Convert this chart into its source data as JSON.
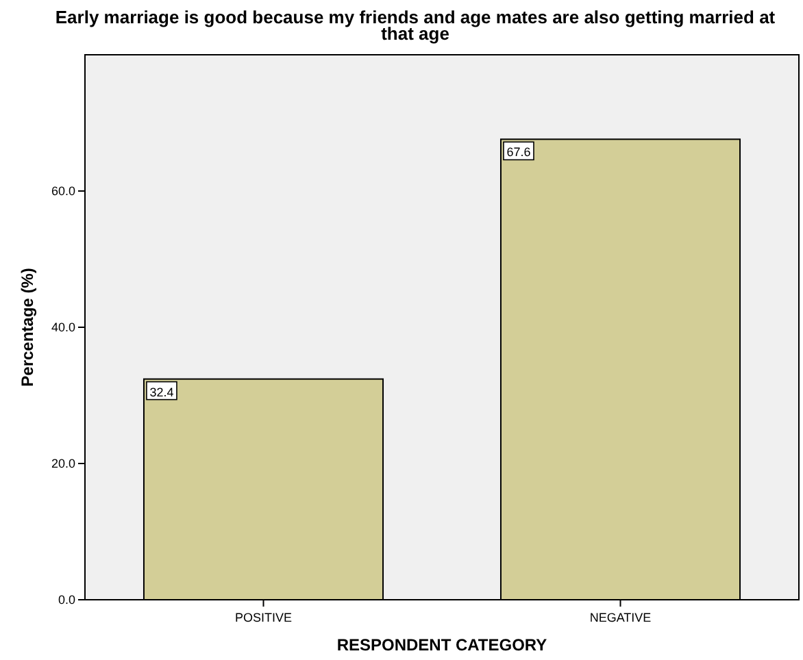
{
  "chart_data": {
    "type": "bar",
    "title": "Early marriage is good because my friends and age mates are also getting married at that age",
    "xlabel": "RESPONDENT CATEGORY",
    "ylabel": "Percentage (%)",
    "categories": [
      "POSITIVE",
      "NEGATIVE"
    ],
    "values": [
      32.4,
      67.6
    ],
    "color": "#d3ce97",
    "ylim": [
      0,
      80
    ],
    "yticks": [
      {
        "value": 0,
        "label": "0.0"
      },
      {
        "value": 20,
        "label": "20.0"
      },
      {
        "value": 40,
        "label": "40.0"
      },
      {
        "value": 60,
        "label": "60.0"
      }
    ],
    "data_labels": true,
    "grid": false
  }
}
